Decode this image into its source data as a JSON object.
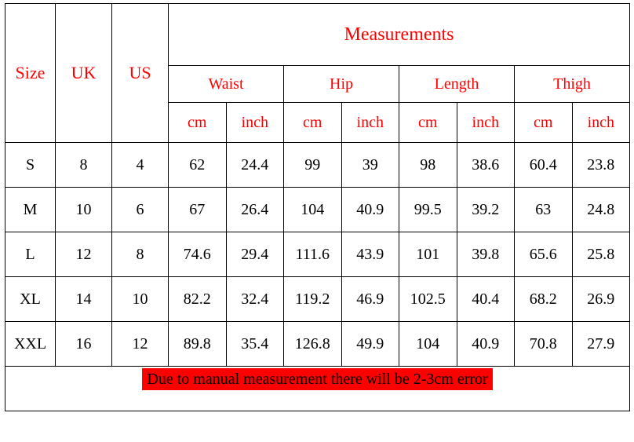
{
  "headers": {
    "size": "Size",
    "uk": "UK",
    "us": "US",
    "measurements": "Measurements",
    "groups": [
      "Waist",
      "Hip",
      "Length",
      "Thigh"
    ],
    "units": {
      "cm": "cm",
      "inch": "inch"
    }
  },
  "rows": [
    {
      "size": "S",
      "uk": "8",
      "us": "4",
      "m": [
        "62",
        "24.4",
        "99",
        "39",
        "98",
        "38.6",
        "60.4",
        "23.8"
      ]
    },
    {
      "size": "M",
      "uk": "10",
      "us": "6",
      "m": [
        "67",
        "26.4",
        "104",
        "40.9",
        "99.5",
        "39.2",
        "63",
        "24.8"
      ]
    },
    {
      "size": "L",
      "uk": "12",
      "us": "8",
      "m": [
        "74.6",
        "29.4",
        "111.6",
        "43.9",
        "101",
        "39.8",
        "65.6",
        "25.8"
      ]
    },
    {
      "size": "XL",
      "uk": "14",
      "us": "10",
      "m": [
        "82.2",
        "32.4",
        "119.2",
        "46.9",
        "102.5",
        "40.4",
        "68.2",
        "26.9"
      ]
    },
    {
      "size": "XXL",
      "uk": "16",
      "us": "12",
      "m": [
        "89.8",
        "35.4",
        "126.8",
        "49.9",
        "104",
        "40.9",
        "70.8",
        "27.9"
      ]
    }
  ],
  "footer": "Due to manual measurement there will be 2-3cm error",
  "style": {
    "header_color": "#ff0000",
    "text_color": "#000000",
    "border_color": "#000000",
    "footer_bg": "#ff0000",
    "footer_text": "#000000",
    "background": "#ffffff",
    "font_family": "Times New Roman",
    "header_fontsize": 22,
    "measurements_fontsize": 24,
    "body_fontsize": 20
  }
}
